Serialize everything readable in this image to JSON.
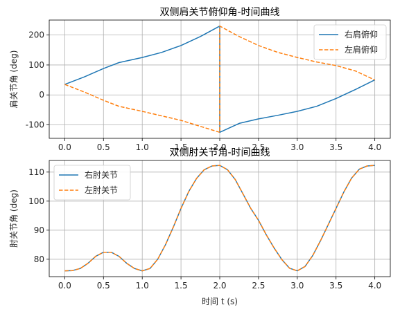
{
  "colors": {
    "right": "#1f77b4",
    "left": "#ff7f0e",
    "grid": "#b0b0b0"
  },
  "chart_data": [
    {
      "type": "line",
      "title": "双侧肩关节俯仰角-时间曲线",
      "xlabel": "",
      "ylabel": "肩关节角 (deg)",
      "xlim": [
        -0.2,
        4.2
      ],
      "ylim": [
        -145,
        250
      ],
      "xticks": [
        "0.0",
        "0.5",
        "1.0",
        "1.5",
        "2.0",
        "2.5",
        "3.0",
        "3.5",
        "4.0"
      ],
      "yticks": [
        "-100",
        "0",
        "100",
        "200"
      ],
      "grid": true,
      "legend_position": "top-right",
      "series": [
        {
          "name": "右肩俯仰",
          "style": "solid",
          "x": [
            0,
            0.25,
            0.5,
            0.7,
            1.0,
            1.25,
            1.5,
            1.75,
            2.0,
            2.0,
            2.25,
            2.5,
            2.75,
            3.0,
            3.25,
            3.5,
            3.75,
            4.0
          ],
          "y": [
            35,
            60,
            88,
            108,
            125,
            142,
            165,
            195,
            230,
            -125,
            -95,
            -80,
            -68,
            -55,
            -38,
            -12,
            18,
            50
          ]
        },
        {
          "name": "左肩俯仰",
          "style": "dashed",
          "x": [
            0,
            0.25,
            0.5,
            0.7,
            1.0,
            1.25,
            1.5,
            1.75,
            2.0,
            2.0,
            2.25,
            2.5,
            2.75,
            3.0,
            3.25,
            3.5,
            3.75,
            4.0
          ],
          "y": [
            35,
            10,
            -18,
            -38,
            -55,
            -70,
            -85,
            -105,
            -125,
            230,
            195,
            165,
            142,
            125,
            110,
            98,
            80,
            50
          ]
        }
      ]
    },
    {
      "type": "line",
      "title": "双侧肘关节角-时间曲线",
      "xlabel": "时间 t (s)",
      "ylabel": "肘关节角 (deg)",
      "xlim": [
        -0.2,
        4.2
      ],
      "ylim": [
        74,
        114
      ],
      "xticks": [
        "0.0",
        "0.5",
        "1.0",
        "1.5",
        "2.0",
        "2.5",
        "3.0",
        "3.5",
        "4.0"
      ],
      "yticks": [
        "80",
        "90",
        "100",
        "110"
      ],
      "grid": true,
      "legend_position": "top-left",
      "series": [
        {
          "name": "右肘关节",
          "style": "solid",
          "x": [
            0,
            0.1,
            0.2,
            0.3,
            0.4,
            0.5,
            0.6,
            0.7,
            0.8,
            0.9,
            1.0,
            1.1,
            1.2,
            1.3,
            1.4,
            1.5,
            1.6,
            1.7,
            1.8,
            1.9,
            2.0,
            2.1,
            2.2,
            2.3,
            2.4,
            2.5,
            2.6,
            2.7,
            2.8,
            2.9,
            3.0,
            3.1,
            3.2,
            3.3,
            3.4,
            3.5,
            3.6,
            3.7,
            3.8,
            3.9,
            4.0
          ],
          "y": [
            76,
            76.1,
            76.8,
            78.6,
            81,
            82.4,
            82.4,
            81,
            78.6,
            76.8,
            76,
            76.8,
            80,
            85,
            91,
            97.5,
            103.3,
            107.8,
            110.8,
            112.1,
            112.3,
            110.8,
            107.4,
            102.5,
            97.5,
            93.4,
            88.4,
            83.9,
            79.9,
            76.9,
            76,
            77.5,
            81.3,
            86.4,
            91.9,
            97.5,
            103.1,
            107.9,
            111.0,
            112.1,
            112.3
          ]
        },
        {
          "name": "左肘关节",
          "style": "dashed",
          "x": [
            0,
            0.1,
            0.2,
            0.3,
            0.4,
            0.5,
            0.6,
            0.7,
            0.8,
            0.9,
            1.0,
            1.1,
            1.2,
            1.3,
            1.4,
            1.5,
            1.6,
            1.7,
            1.8,
            1.9,
            2.0,
            2.1,
            2.2,
            2.3,
            2.4,
            2.5,
            2.6,
            2.7,
            2.8,
            2.9,
            3.0,
            3.1,
            3.2,
            3.3,
            3.4,
            3.5,
            3.6,
            3.7,
            3.8,
            3.9,
            4.0
          ],
          "y": [
            76,
            76.1,
            76.8,
            78.6,
            81,
            82.4,
            82.4,
            81,
            78.6,
            76.8,
            76,
            76.8,
            80,
            85,
            91,
            97.5,
            103.3,
            107.8,
            110.8,
            112.1,
            112.3,
            110.8,
            107.4,
            102.5,
            97.5,
            93.4,
            88.4,
            83.9,
            79.9,
            76.9,
            76,
            77.5,
            81.3,
            86.4,
            91.9,
            97.5,
            103.1,
            107.9,
            111.0,
            112.1,
            112.3
          ]
        }
      ]
    }
  ]
}
